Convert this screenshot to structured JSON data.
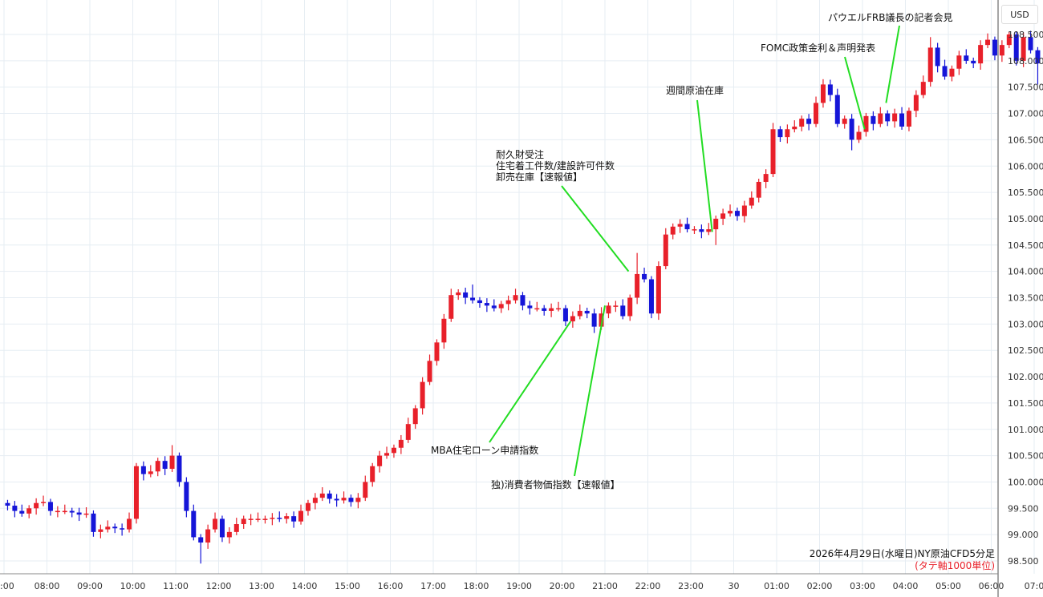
{
  "chart_data": {
    "type": "candlestick",
    "title": "2026年4月29日(水曜日)NY原油CFD5分足",
    "subtitle": "(タテ軸1000単位)",
    "currency_label": "USD",
    "interval_minutes_plotted": 10,
    "start_time": "07:00",
    "first_open": 99.6,
    "close": [
      99.55,
      99.45,
      99.4,
      99.5,
      99.6,
      99.62,
      99.45,
      99.45,
      99.45,
      99.42,
      99.38,
      99.4,
      99.05,
      99.1,
      99.15,
      99.12,
      99.1,
      99.3,
      100.3,
      100.15,
      100.2,
      100.4,
      100.25,
      100.5,
      100.0,
      99.45,
      98.95,
      98.85,
      99.1,
      99.3,
      98.95,
      99.05,
      99.2,
      99.3,
      99.3,
      99.3,
      99.3,
      99.32,
      99.3,
      99.35,
      99.25,
      99.45,
      99.6,
      99.7,
      99.78,
      99.68,
      99.65,
      99.7,
      99.62,
      99.7,
      100.0,
      100.3,
      100.5,
      100.55,
      100.65,
      100.8,
      101.1,
      101.4,
      101.9,
      102.3,
      102.65,
      103.1,
      103.55,
      103.6,
      103.5,
      103.45,
      103.4,
      103.35,
      103.3,
      103.38,
      103.45,
      103.55,
      103.35,
      103.3,
      103.3,
      103.25,
      103.3,
      103.3,
      103.05,
      103.15,
      103.25,
      103.2,
      102.95,
      103.2,
      103.35,
      103.35,
      103.15,
      103.5,
      103.95,
      103.85,
      103.2,
      104.1,
      104.7,
      104.85,
      104.9,
      104.8,
      104.8,
      104.75,
      104.8,
      105.0,
      105.1,
      105.15,
      105.05,
      105.25,
      105.4,
      105.7,
      105.85,
      106.7,
      106.55,
      106.7,
      106.75,
      106.9,
      106.8,
      107.2,
      107.55,
      107.35,
      106.8,
      106.9,
      106.5,
      106.65,
      106.95,
      106.8,
      107.0,
      106.85,
      107.0,
      106.75,
      107.05,
      107.35,
      107.6,
      108.25,
      107.9,
      107.7,
      107.85,
      108.1,
      108.0,
      107.95,
      108.3,
      108.4,
      108.1,
      108.3,
      108.5,
      108.0,
      108.45,
      108.2,
      107.95
    ],
    "notable_extremes": [
      {
        "time": "10:50",
        "high": 100.7
      },
      {
        "time": "11:30",
        "low": 98.45
      },
      {
        "time": "17:50",
        "high": 103.75
      },
      {
        "time": "21:40",
        "high": 104.35
      },
      {
        "time": "23:30",
        "low": 104.5
      },
      {
        "time": "02:00",
        "high": 107.65
      },
      {
        "time": "02:40",
        "low": 106.3
      },
      {
        "time": "04:30",
        "high": 108.45
      },
      {
        "time": "06:20",
        "high": 108.55
      },
      {
        "time": "07:00",
        "low": 107.55
      }
    ],
    "up_color": "#e8202a",
    "down_color": "#1515d8",
    "ylim": [
      98.3,
      108.7
    ],
    "yticks": [
      "108.500",
      "108.000",
      "107.500",
      "107.000",
      "106.500",
      "106.000",
      "105.500",
      "105.000",
      "104.500",
      "104.000",
      "103.500",
      "103.000",
      "102.500",
      "102.000",
      "101.500",
      "101.000",
      "100.500",
      "100.000",
      "99.500",
      "99.000",
      "98.500"
    ],
    "xticks": [
      ":00",
      "08:00",
      "09:00",
      "10:00",
      "11:00",
      "12:00",
      "13:00",
      "14:00",
      "15:00",
      "16:00",
      "17:00",
      "18:00",
      "19:00",
      "20:00",
      "21:00",
      "22:00",
      "23:00",
      "30",
      "01:00",
      "02:00",
      "03:00",
      "04:00",
      "05:00",
      "06:00",
      "07:0"
    ],
    "grid": true,
    "annotations": [
      {
        "lines": [
          "耐久財受注",
          "住宅着工件数/建設許可件数",
          "卸売在庫【速報値】"
        ],
        "time_hours": 14.55,
        "price": 104.0
      },
      {
        "lines": [
          "MBA住宅ローン申請指数"
        ],
        "time_hours": 13.2,
        "price": 103.05
      },
      {
        "lines": [
          "独)消費者物価指数【速報値】"
        ],
        "time_hours": 14.0,
        "price": 103.35
      },
      {
        "lines": [
          "週間原油在庫"
        ],
        "time_hours": 16.5,
        "price": 104.75
      },
      {
        "lines": [
          "FOMC政策金利＆声明発表"
        ],
        "time_hours": 20.05,
        "price": 106.7
      },
      {
        "lines": [
          "パウエルFRB議長の記者会見"
        ],
        "time_hours": 20.55,
        "price": 107.2
      }
    ],
    "annotation_line_color": "#22dd22"
  }
}
